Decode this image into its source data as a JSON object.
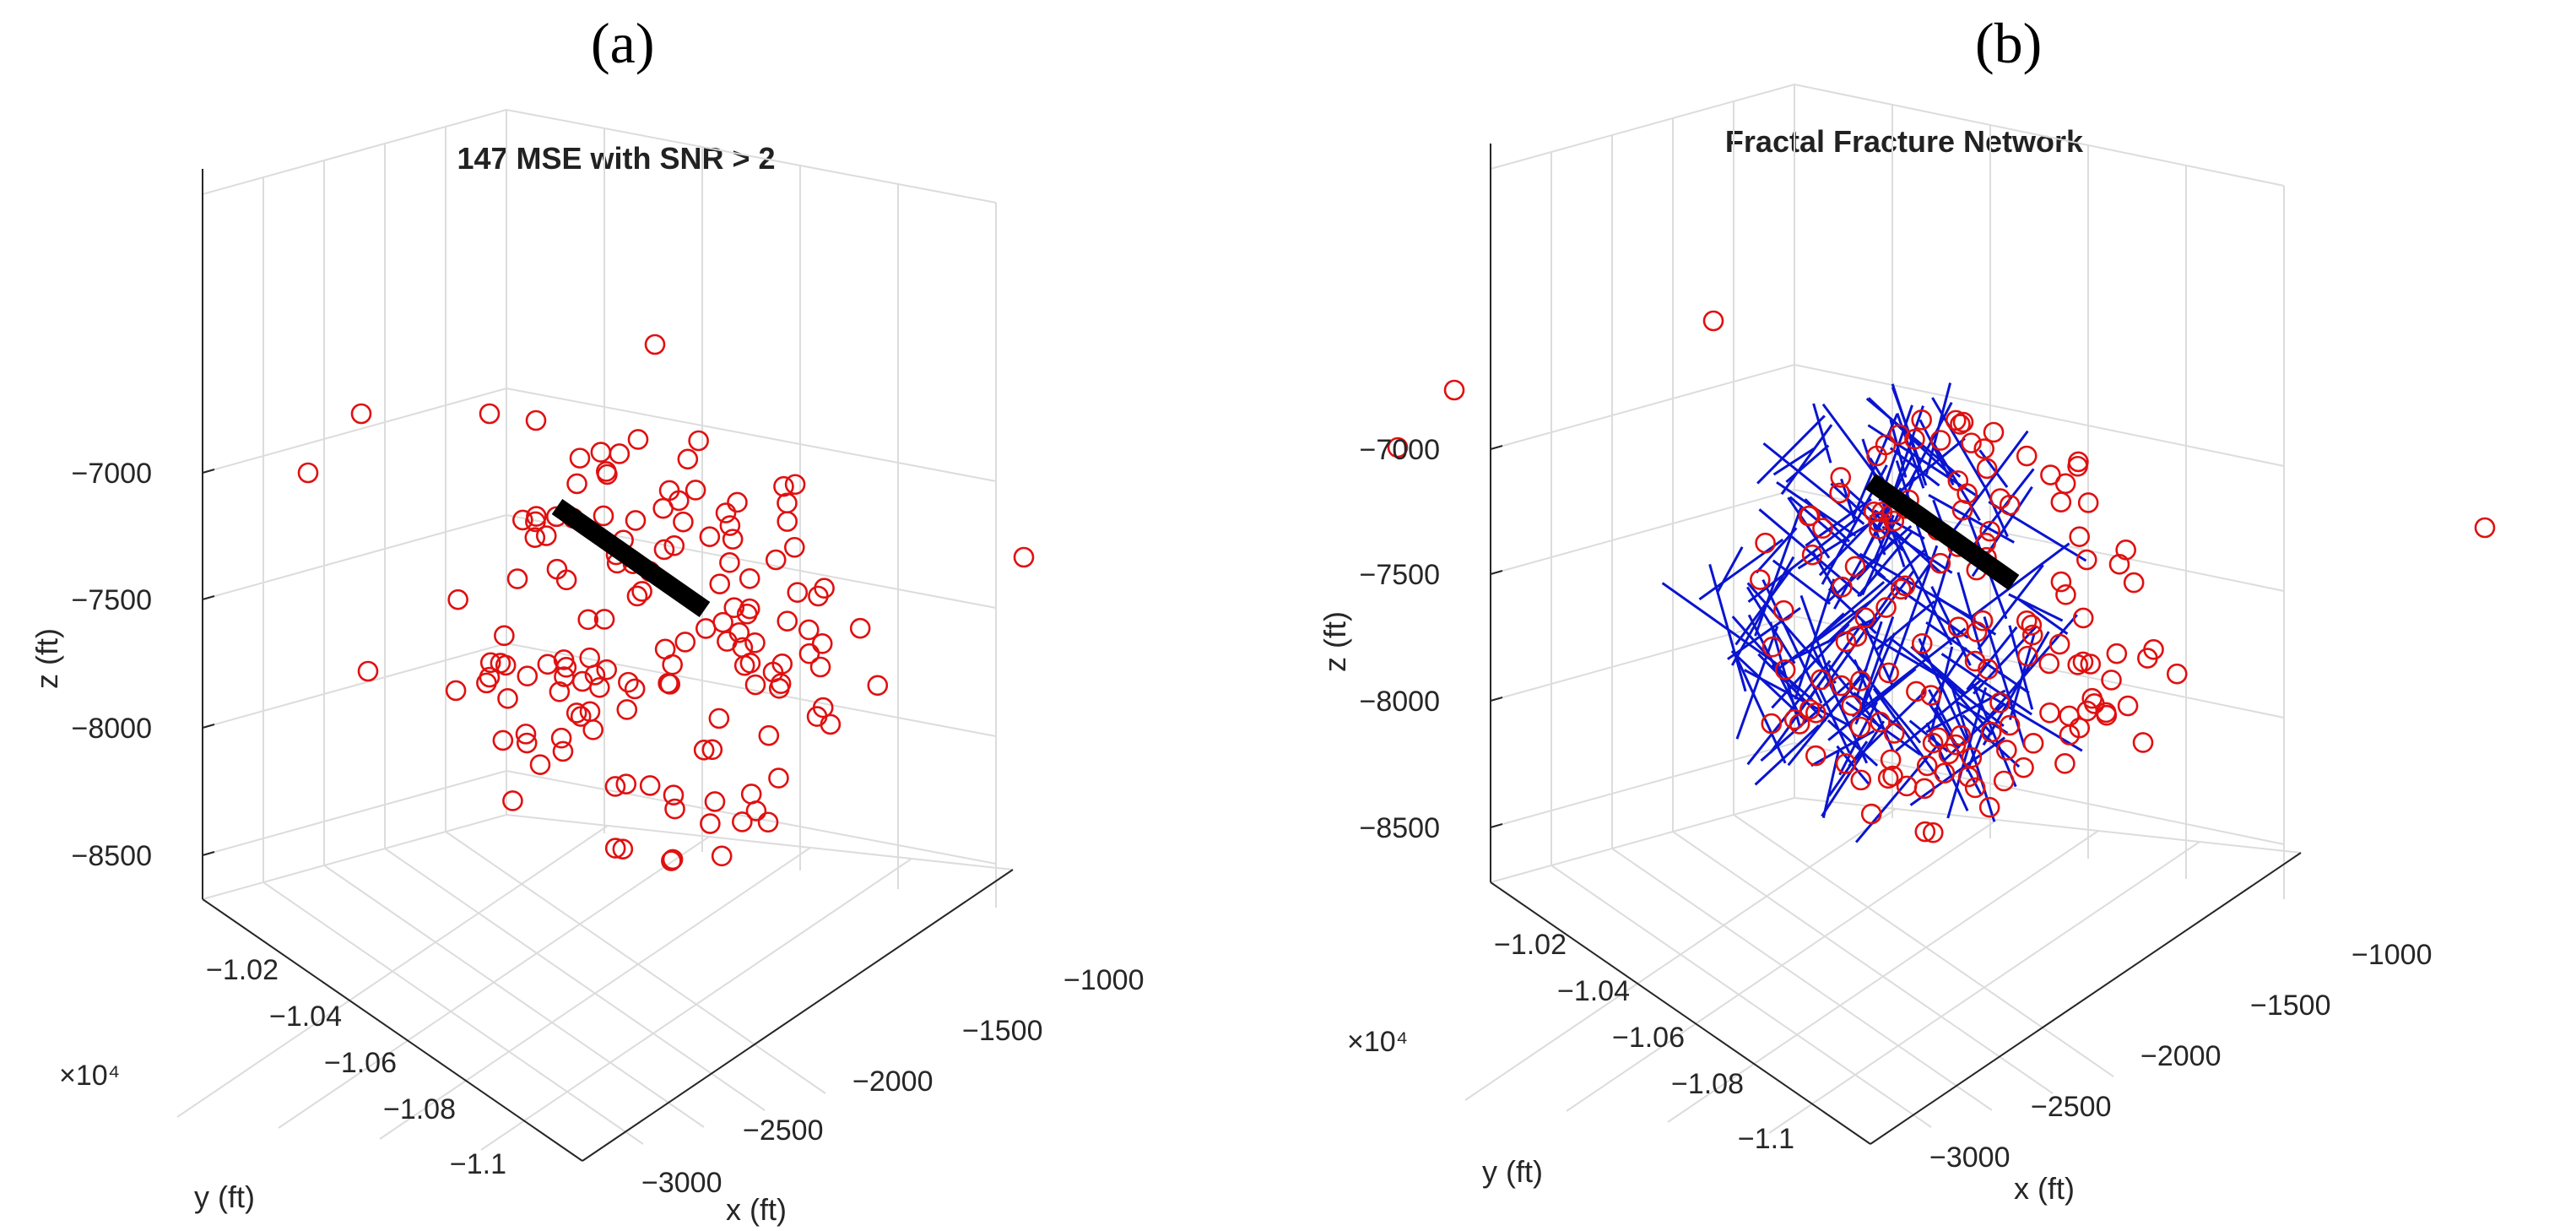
{
  "panels": {
    "a": {
      "letter": "(a)"
    },
    "b": {
      "letter": "(b)"
    }
  },
  "chart_data": [
    {
      "type": "scatter",
      "title": "147 MSE with SNR > 2",
      "xlabel": "x (ft)",
      "ylabel": "y (ft)",
      "zlabel": "z (ft)",
      "x_ticks": [
        "-3000",
        "-2500",
        "-2000",
        "-1500",
        "-1000"
      ],
      "y_ticks": [
        "-1.02",
        "-1.04",
        "-1.06",
        "-1.08",
        "-1.1"
      ],
      "y_exponent": "×10⁴",
      "z_ticks": [
        "-7000",
        "-7500",
        "-8000",
        "-8500"
      ],
      "xlim": [
        -3200,
        -800
      ],
      "ylim": [
        -11000,
        -10200
      ],
      "zlim": [
        -8700,
        -6700
      ],
      "grid": true,
      "series": [
        {
          "marker": "circle",
          "color": "#e01010",
          "count": 147
        },
        {
          "marker": "line",
          "color": "#000000"
        }
      ]
    },
    {
      "type": "scatter",
      "title": "Fractal Fracture Network",
      "xlabel": "x (ft)",
      "ylabel": "y (ft)",
      "zlabel": "z (ft)",
      "x_ticks": [
        "-3000",
        "-2500",
        "-2000",
        "-1500",
        "-1000"
      ],
      "y_ticks": [
        "-1.02",
        "-1.04",
        "-1.06",
        "-1.08",
        "-1.1"
      ],
      "y_exponent": "×10⁴",
      "z_ticks": [
        "-7000",
        "-7500",
        "-8000",
        "-8500"
      ],
      "xlim": [
        -3200,
        -800
      ],
      "ylim": [
        -11000,
        -10200
      ],
      "zlim": [
        -8700,
        -6700
      ],
      "grid": true,
      "series": [
        {
          "marker": "circle",
          "color": "#e01010",
          "count": 147
        },
        {
          "marker": "line",
          "color": "#0a14d0"
        },
        {
          "marker": "line",
          "color": "#000000"
        }
      ]
    }
  ]
}
